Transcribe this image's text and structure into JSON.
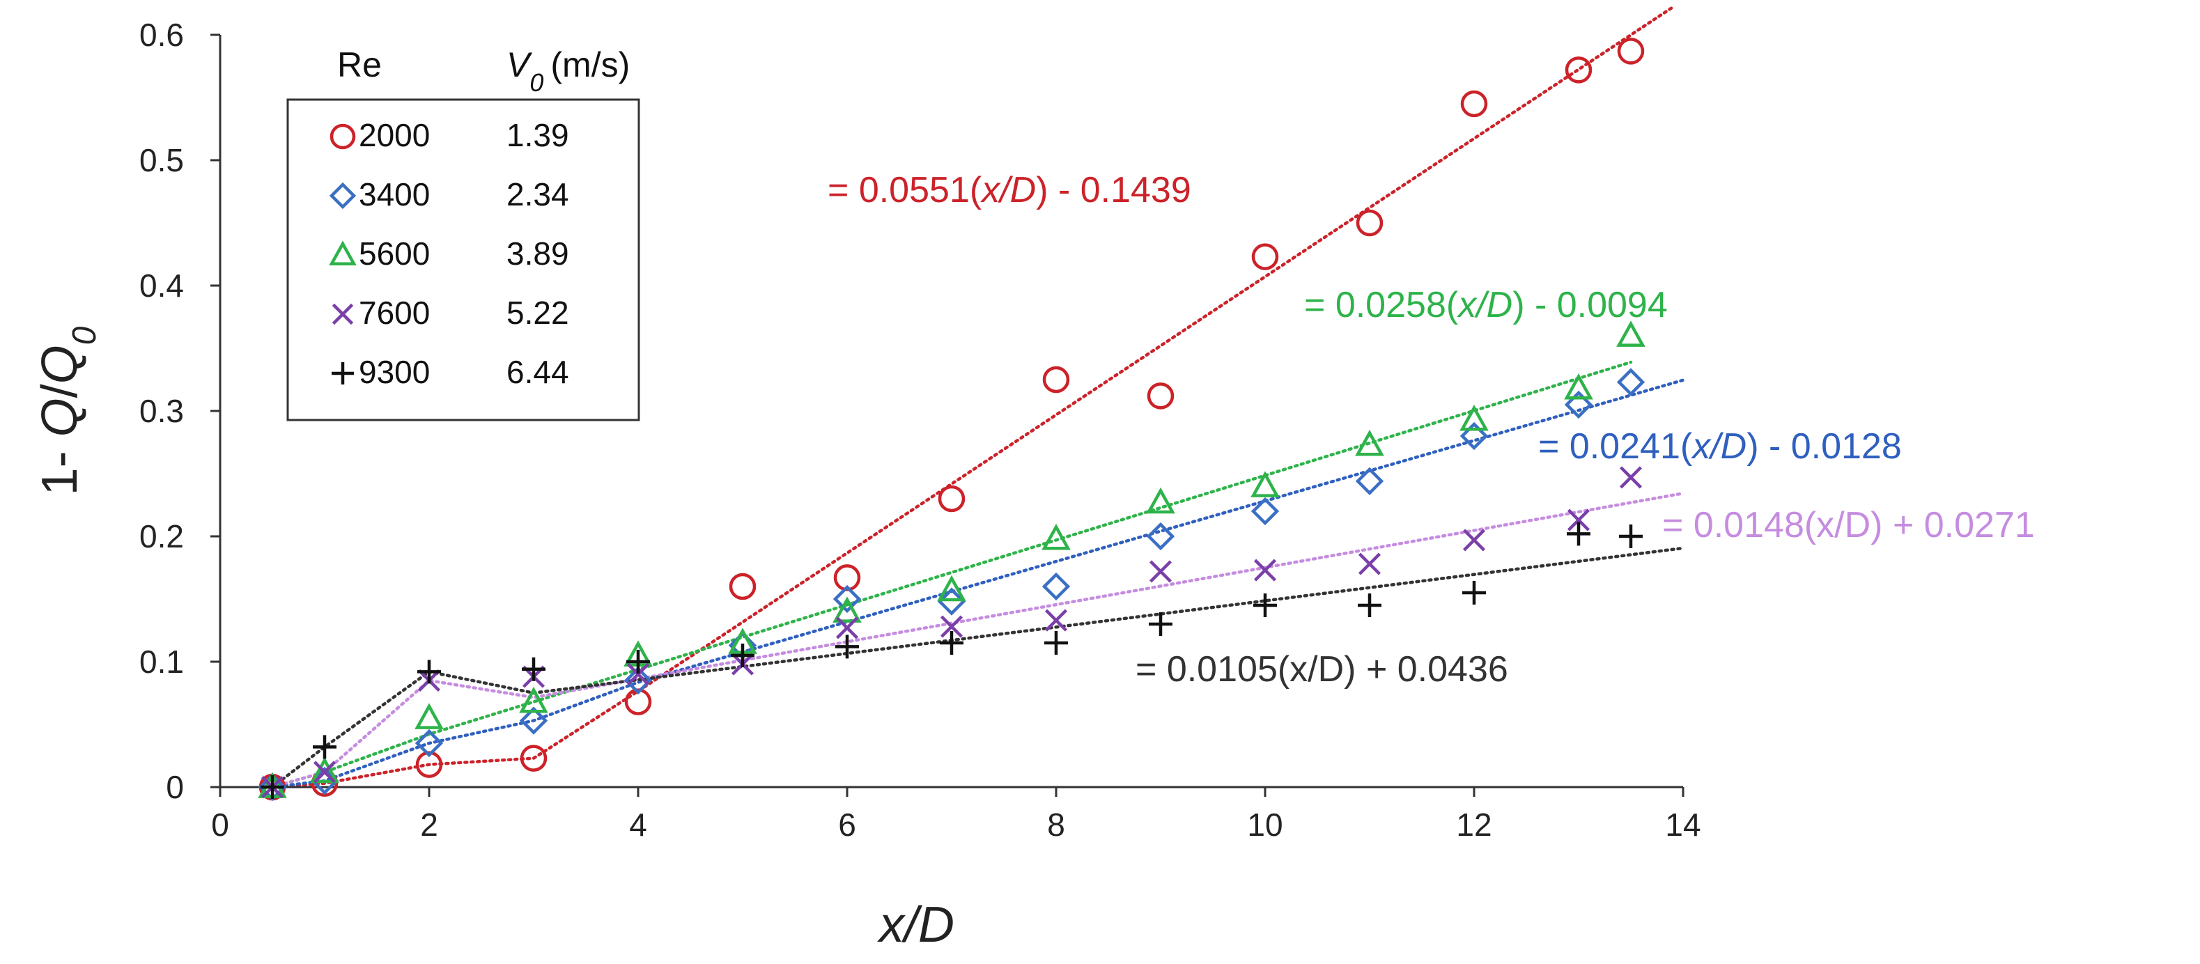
{
  "chart_data": {
    "type": "scatter",
    "title": "",
    "xlabel": "x/D",
    "ylabel": "1- Q/Q0",
    "xlim": [
      0,
      14
    ],
    "ylim": [
      0,
      0.6
    ],
    "x_ticks": [
      "0",
      "2",
      "4",
      "6",
      "8",
      "10",
      "12",
      "14"
    ],
    "y_ticks": [
      "0",
      "0.1",
      "0.2",
      "0.3",
      "0.4",
      "0.5",
      "0.6"
    ],
    "grid": false,
    "legend": {
      "position": "top-left",
      "header_re": "Re",
      "header_v0": "V",
      "header_v0_sub": "0",
      "header_v0_unit": "(m/s)"
    },
    "series": [
      {
        "name": "2000",
        "v0": "1.39",
        "color": "#cc2229",
        "marker": "circle",
        "trend_color": "#cc2229",
        "x": [
          0.5,
          1,
          2,
          3,
          4,
          5,
          6,
          7,
          8,
          9,
          10,
          11,
          12,
          13,
          13.5
        ],
        "y": [
          0.0,
          0.003,
          0.018,
          0.023,
          0.068,
          0.16,
          0.167,
          0.23,
          0.325,
          0.312,
          0.423,
          0.45,
          0.545,
          0.572,
          0.587
        ],
        "trend": {
          "slope": 0.0551,
          "intercept": -0.1439,
          "fit_start": 4,
          "x_end": 13.9,
          "label_prefix": "= 0.0551(",
          "label_var": "x/D",
          "label_suffix": ") - 0.1439",
          "italic": true
        }
      },
      {
        "name": "3400",
        "v0": "2.34",
        "color": "#3a6fc4",
        "marker": "diamond",
        "trend_color": "#2f5fbf",
        "x": [
          0.5,
          1,
          2,
          3,
          4,
          5,
          6,
          7,
          8,
          9,
          10,
          11,
          12,
          13,
          13.5
        ],
        "y": [
          0.0,
          0.005,
          0.035,
          0.053,
          0.085,
          0.113,
          0.15,
          0.148,
          0.16,
          0.2,
          0.22,
          0.244,
          0.28,
          0.305,
          0.323
        ],
        "trend": {
          "slope": 0.0241,
          "intercept": -0.0128,
          "fit_start": 4,
          "x_end": 14.0,
          "label_prefix": "= 0.0241(",
          "label_var": "x/D",
          "label_suffix": ") - 0.0128",
          "italic": true
        }
      },
      {
        "name": "5600",
        "v0": "3.89",
        "color": "#2eb34a",
        "marker": "triangle",
        "trend_color": "#2eb34a",
        "x": [
          0.5,
          1,
          2,
          3,
          4,
          5,
          6,
          7,
          8,
          9,
          10,
          11,
          12,
          13,
          13.5
        ],
        "y": [
          0.0,
          0.012,
          0.055,
          0.068,
          0.105,
          0.115,
          0.14,
          0.157,
          0.198,
          0.227,
          0.24,
          0.273,
          0.293,
          0.318,
          0.36
        ],
        "trend": {
          "slope": 0.0258,
          "intercept": -0.0094,
          "fit_start": 2,
          "x_end": 13.5,
          "label_prefix": "= 0.0258(",
          "label_var": "x/D",
          "label_suffix": ") - 0.0094",
          "italic": true
        }
      },
      {
        "name": "7600",
        "v0": "5.22",
        "color": "#7a3fa8",
        "marker": "cross",
        "trend_color": "#c58ce0",
        "x": [
          0.5,
          1,
          2,
          3,
          4,
          5,
          6,
          7,
          8,
          9,
          10,
          11,
          12,
          13,
          13.5
        ],
        "y": [
          0.0,
          0.012,
          0.085,
          0.088,
          0.09,
          0.098,
          0.127,
          0.128,
          0.133,
          0.172,
          0.173,
          0.178,
          0.197,
          0.213,
          0.247
        ],
        "trend": {
          "slope": 0.0148,
          "intercept": 0.0271,
          "fit_start": 3,
          "x_end": 14.0,
          "label_prefix": "= 0.0148(x/D) + 0.0271",
          "label_var": "",
          "label_suffix": "",
          "italic": false
        }
      },
      {
        "name": "9300",
        "v0": "6.44",
        "color": "#111111",
        "marker": "plus",
        "trend_color": "#333333",
        "x": [
          0.5,
          1,
          2,
          3,
          4,
          5,
          6,
          7,
          8,
          9,
          10,
          11,
          12,
          13,
          13.5
        ],
        "y": [
          0.0,
          0.032,
          0.092,
          0.094,
          0.1,
          0.105,
          0.112,
          0.115,
          0.115,
          0.13,
          0.145,
          0.145,
          0.155,
          0.202,
          0.2
        ],
        "trend": {
          "slope": 0.0105,
          "intercept": 0.0436,
          "fit_start": 3,
          "x_end": 14.0,
          "label_prefix": "= 0.0105(x/D) + 0.0436",
          "label_var": "",
          "label_suffix": "",
          "italic": false
        }
      }
    ]
  }
}
